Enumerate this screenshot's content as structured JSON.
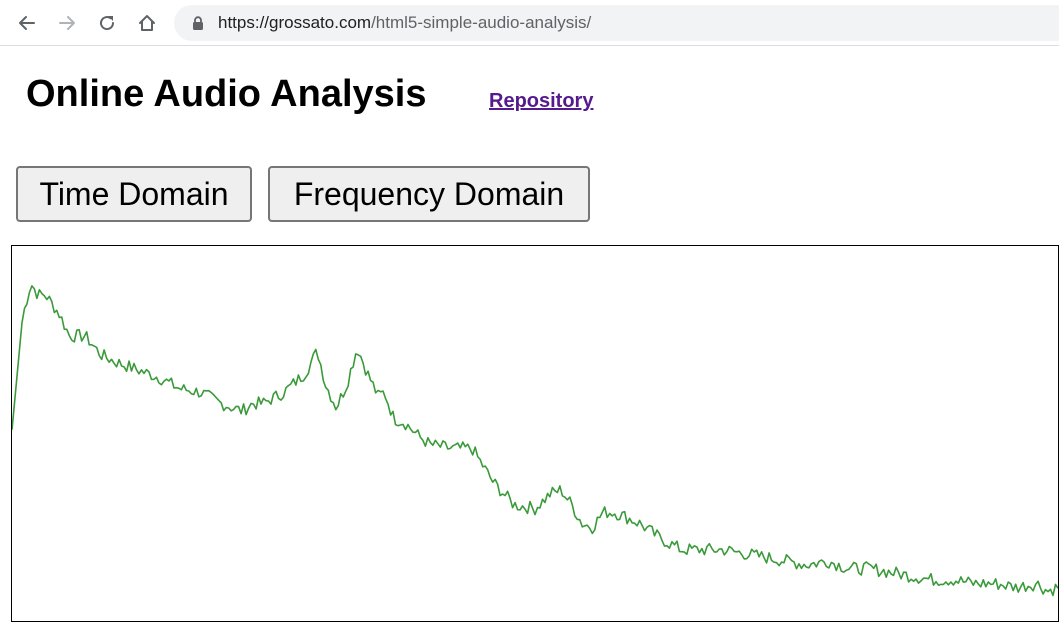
{
  "browser": {
    "url_host": "https://grossato.com",
    "url_path": "/html5-simple-audio-analysis/"
  },
  "page": {
    "title": "Online Audio Analysis",
    "repo_link": "Repository"
  },
  "controls": {
    "time_domain_label": "Time Domain",
    "frequency_domain_label": "Frequency Domain"
  },
  "colors": {
    "line": "#3a9a3a"
  },
  "chart_data": {
    "type": "line",
    "title": "",
    "xlabel": "",
    "ylabel": "",
    "grid": false,
    "legend": "none",
    "xlim": [
      0,
      1
    ],
    "ylim": [
      0,
      1
    ],
    "x": [
      0.0,
      0.01,
      0.018,
      0.025,
      0.032,
      0.045,
      0.055,
      0.07,
      0.085,
      0.1,
      0.12,
      0.14,
      0.16,
      0.18,
      0.2,
      0.22,
      0.23,
      0.24,
      0.26,
      0.28,
      0.292,
      0.3,
      0.31,
      0.32,
      0.33,
      0.34,
      0.35,
      0.356,
      0.365,
      0.375,
      0.39,
      0.4,
      0.42,
      0.44,
      0.46,
      0.48,
      0.5,
      0.515,
      0.525,
      0.535,
      0.545,
      0.555,
      0.565,
      0.575,
      0.585,
      0.6,
      0.62,
      0.64,
      0.66,
      0.68,
      0.7,
      0.72,
      0.74,
      0.76,
      0.78,
      0.8,
      0.82,
      0.84,
      0.86,
      0.88,
      0.9,
      0.92,
      0.94,
      0.96,
      0.98,
      0.99,
      1.0
    ],
    "y": [
      0.51,
      0.81,
      0.9,
      0.87,
      0.87,
      0.82,
      0.76,
      0.76,
      0.71,
      0.69,
      0.67,
      0.65,
      0.62,
      0.61,
      0.58,
      0.56,
      0.58,
      0.58,
      0.61,
      0.66,
      0.72,
      0.63,
      0.57,
      0.63,
      0.73,
      0.66,
      0.6,
      0.61,
      0.54,
      0.53,
      0.49,
      0.47,
      0.46,
      0.46,
      0.37,
      0.31,
      0.3,
      0.34,
      0.35,
      0.31,
      0.26,
      0.25,
      0.29,
      0.29,
      0.28,
      0.26,
      0.22,
      0.19,
      0.19,
      0.19,
      0.18,
      0.17,
      0.16,
      0.15,
      0.16,
      0.14,
      0.14,
      0.13,
      0.12,
      0.11,
      0.11,
      0.1,
      0.1,
      0.09,
      0.1,
      0.08,
      0.09
    ]
  }
}
